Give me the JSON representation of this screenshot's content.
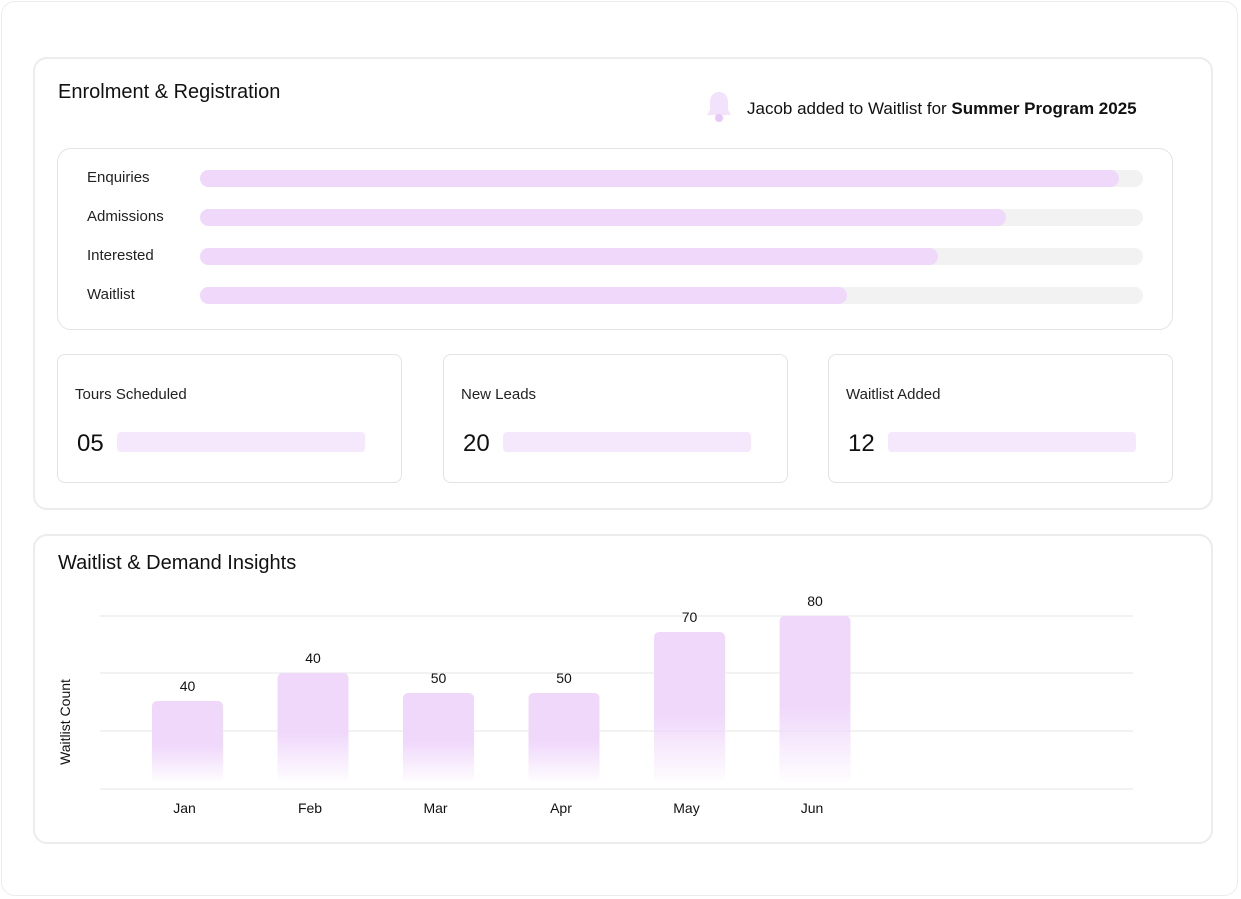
{
  "enrolment": {
    "title": "Enrolment & Registration",
    "notification": {
      "icon": "bell-icon",
      "prefix": "Jacob added to Waitlist for ",
      "highlight": "Summer Program 2025"
    },
    "funnel": [
      {
        "label": "Enquiries",
        "fill": 0.975
      },
      {
        "label": "Admissions",
        "fill": 0.855
      },
      {
        "label": "Interested",
        "fill": 0.783
      },
      {
        "label": "Waitlist",
        "fill": 0.686
      }
    ],
    "stats": [
      {
        "label": "Tours Scheduled",
        "value": "05"
      },
      {
        "label": "New Leads",
        "value": "20"
      },
      {
        "label": "Waitlist Added",
        "value": "12"
      }
    ]
  },
  "insights": {
    "title": "Waitlist & Demand Insights"
  },
  "chart_data": {
    "type": "bar",
    "categories": [
      "Jan",
      "Feb",
      "Mar",
      "Apr",
      "May",
      "Jun"
    ],
    "values": [
      40,
      40,
      50,
      50,
      70,
      80
    ],
    "data_labels": [
      "40",
      "40",
      "50",
      "50",
      "70",
      "80"
    ],
    "ylabel": "Waitlist Count",
    "xlabel": "",
    "grid": true,
    "bar_color": "#f0d8fb"
  },
  "colors": {
    "accent": "#f0d8fb",
    "track": "#f2f2f2",
    "border": "#ececec"
  }
}
